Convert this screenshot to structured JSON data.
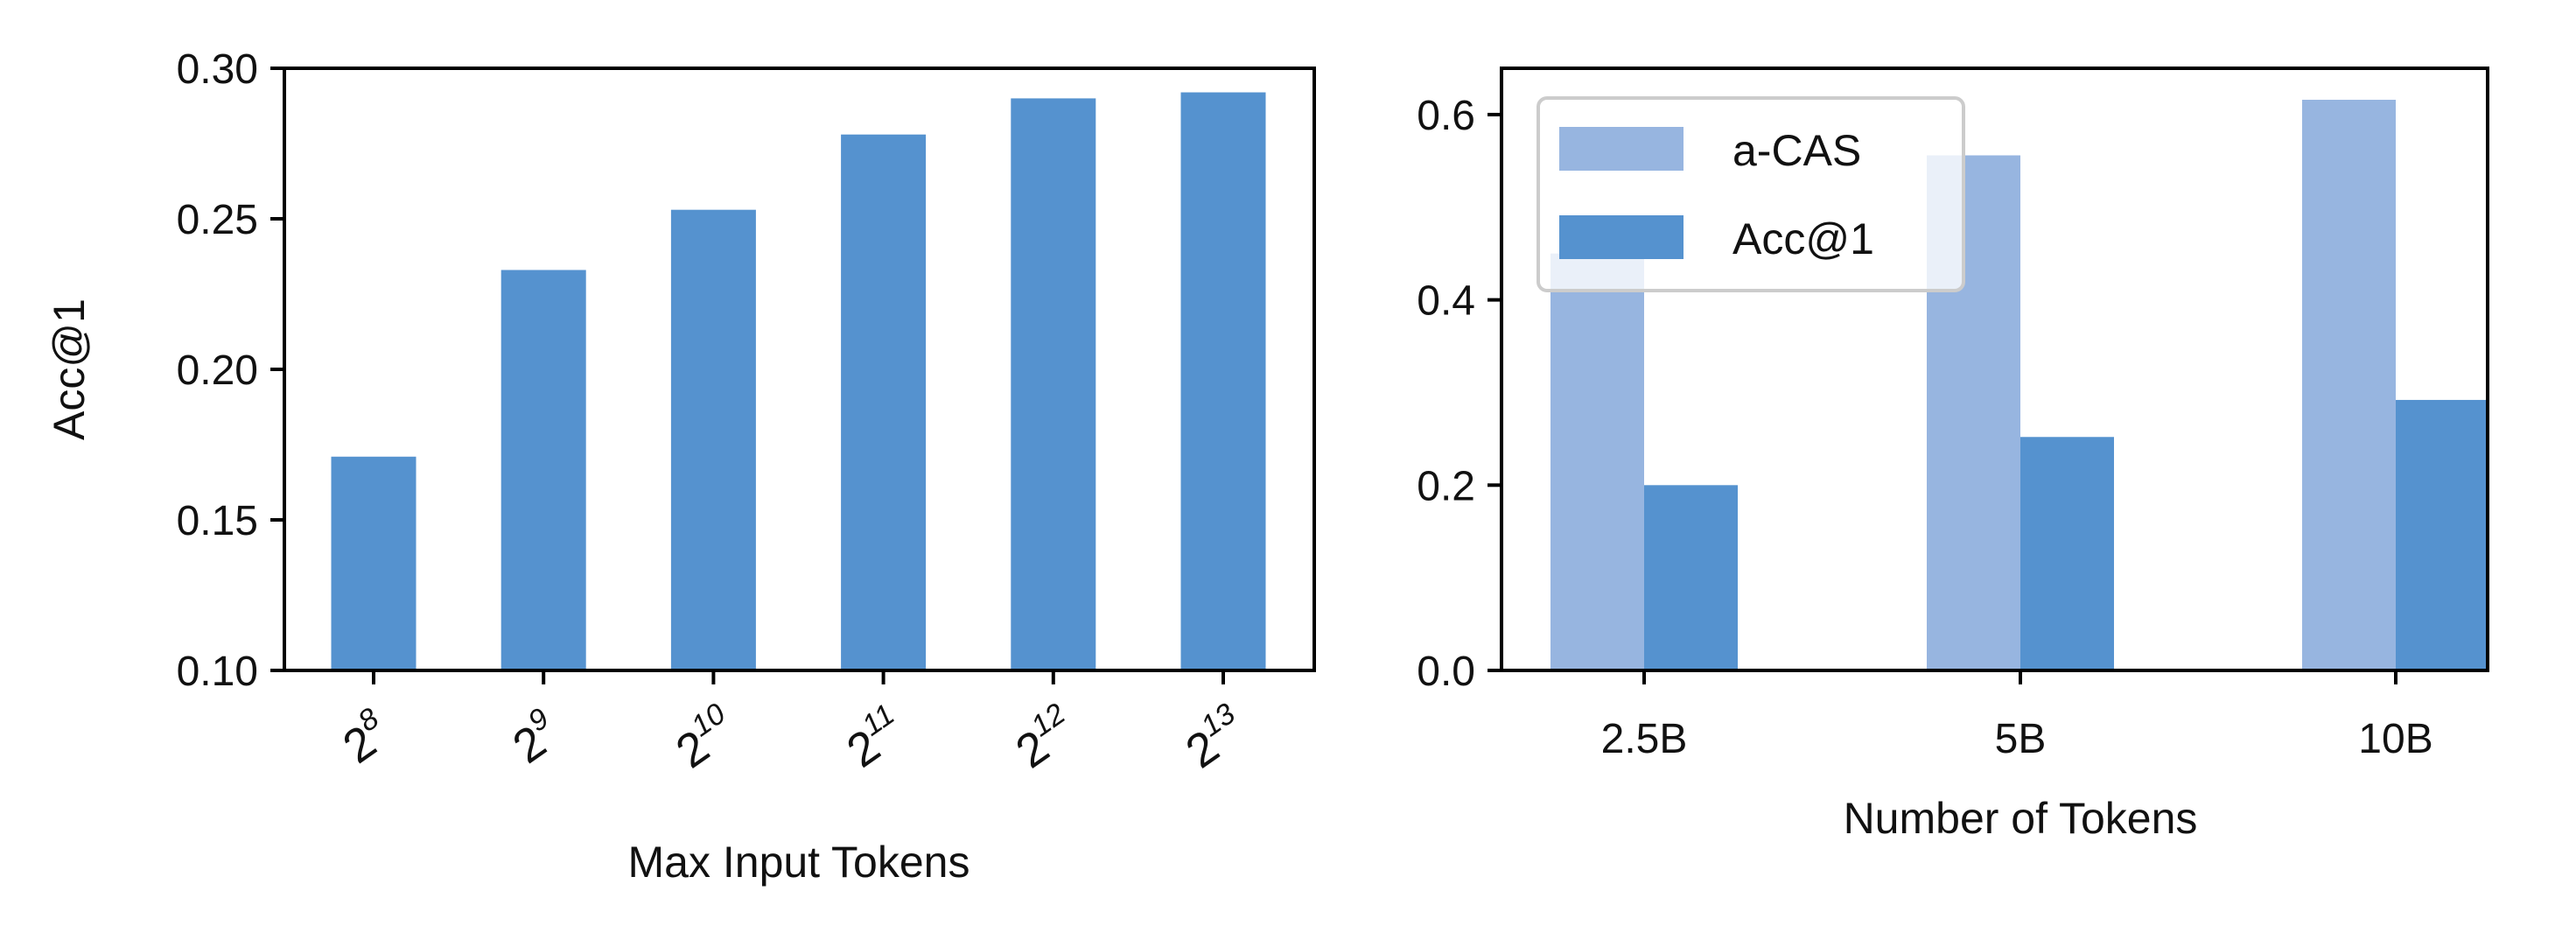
{
  "colors": {
    "acc1": "#5592cf",
    "acas": "#97b5e0",
    "axis": "#000000",
    "legend_border": "#cccccc"
  },
  "chart_data": [
    {
      "type": "bar",
      "categories": [
        "2^8",
        "2^9",
        "2^10",
        "2^11",
        "2^12",
        "2^13"
      ],
      "category_labels": [
        {
          "base": "2",
          "exp": "8"
        },
        {
          "base": "2",
          "exp": "9"
        },
        {
          "base": "2",
          "exp": "10"
        },
        {
          "base": "2",
          "exp": "11"
        },
        {
          "base": "2",
          "exp": "12"
        },
        {
          "base": "2",
          "exp": "13"
        }
      ],
      "values": [
        0.171,
        0.233,
        0.253,
        0.278,
        0.29,
        0.292
      ],
      "xlabel": "Max Input Tokens",
      "ylabel": "Acc@1",
      "ylim": [
        0.1,
        0.3
      ],
      "yticks": [
        "0.10",
        "0.15",
        "0.20",
        "0.25",
        "0.30"
      ],
      "grid": false
    },
    {
      "type": "bar",
      "categories": [
        "2.5B",
        "5B",
        "10B"
      ],
      "series": [
        {
          "name": "a-CAS",
          "values": [
            0.45,
            0.556,
            0.616
          ]
        },
        {
          "name": "Acc@1",
          "values": [
            0.2,
            0.252,
            0.292
          ]
        }
      ],
      "xlabel": "Number of Tokens",
      "ylabel": "",
      "ylim": [
        0.0,
        0.65
      ],
      "yticks": [
        "0.0",
        "0.2",
        "0.4",
        "0.6"
      ],
      "legend_position": "top-left",
      "grid": false
    }
  ]
}
